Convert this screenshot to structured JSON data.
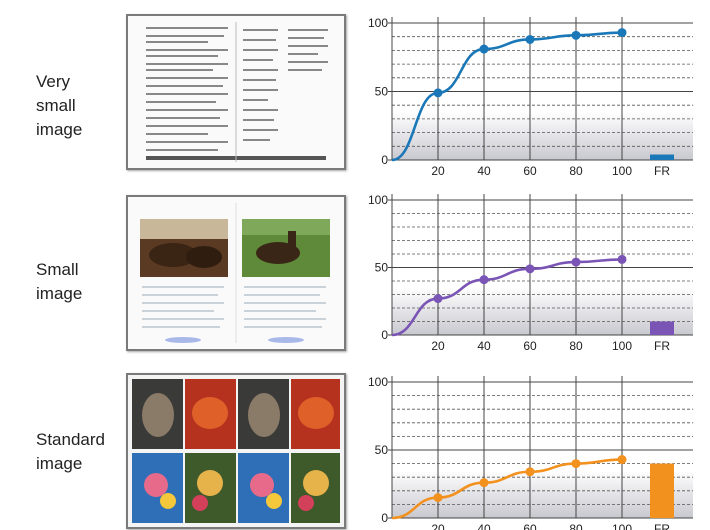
{
  "rows": [
    {
      "label_lines": [
        "Very",
        "small",
        "image"
      ],
      "thumbnail": "document-sheet-page",
      "color": "#1a78b8"
    },
    {
      "label_lines": [
        "Small",
        "image"
      ],
      "thumbnail": "horse-photo-page",
      "color": "#7a55b5"
    },
    {
      "label_lines": [
        "Standard",
        "image"
      ],
      "thumbnail": "flower-art-grid-page",
      "color": "#f2911e"
    }
  ],
  "chart_data": [
    {
      "type": "line",
      "x": [
        0,
        20,
        40,
        60,
        80,
        100
      ],
      "series": [
        {
          "values": [
            0,
            49,
            81,
            88,
            91,
            93
          ]
        }
      ],
      "fr_value": 4,
      "xticks": [
        "20",
        "40",
        "60",
        "80",
        "100",
        "FR"
      ],
      "yticks": [
        "0",
        "50",
        "100"
      ],
      "xlim": [
        0,
        120
      ],
      "ylim": [
        0,
        100
      ],
      "grid": true
    },
    {
      "type": "line",
      "x": [
        0,
        20,
        40,
        60,
        80,
        100
      ],
      "series": [
        {
          "values": [
            0,
            27,
            41,
            49,
            54,
            56
          ]
        }
      ],
      "fr_value": 10,
      "xticks": [
        "20",
        "40",
        "60",
        "80",
        "100",
        "FR"
      ],
      "yticks": [
        "0",
        "50",
        "100"
      ],
      "xlim": [
        0,
        120
      ],
      "ylim": [
        0,
        100
      ],
      "grid": true
    },
    {
      "type": "line",
      "x": [
        0,
        20,
        40,
        60,
        80,
        100
      ],
      "series": [
        {
          "values": [
            0,
            15,
            26,
            34,
            40,
            43
          ]
        }
      ],
      "fr_value": 40,
      "xticks": [
        "20",
        "40",
        "60",
        "80",
        "100",
        "FR"
      ],
      "yticks": [
        "0",
        "50",
        "100"
      ],
      "xlim": [
        0,
        120
      ],
      "ylim": [
        0,
        100
      ],
      "grid": true
    }
  ]
}
